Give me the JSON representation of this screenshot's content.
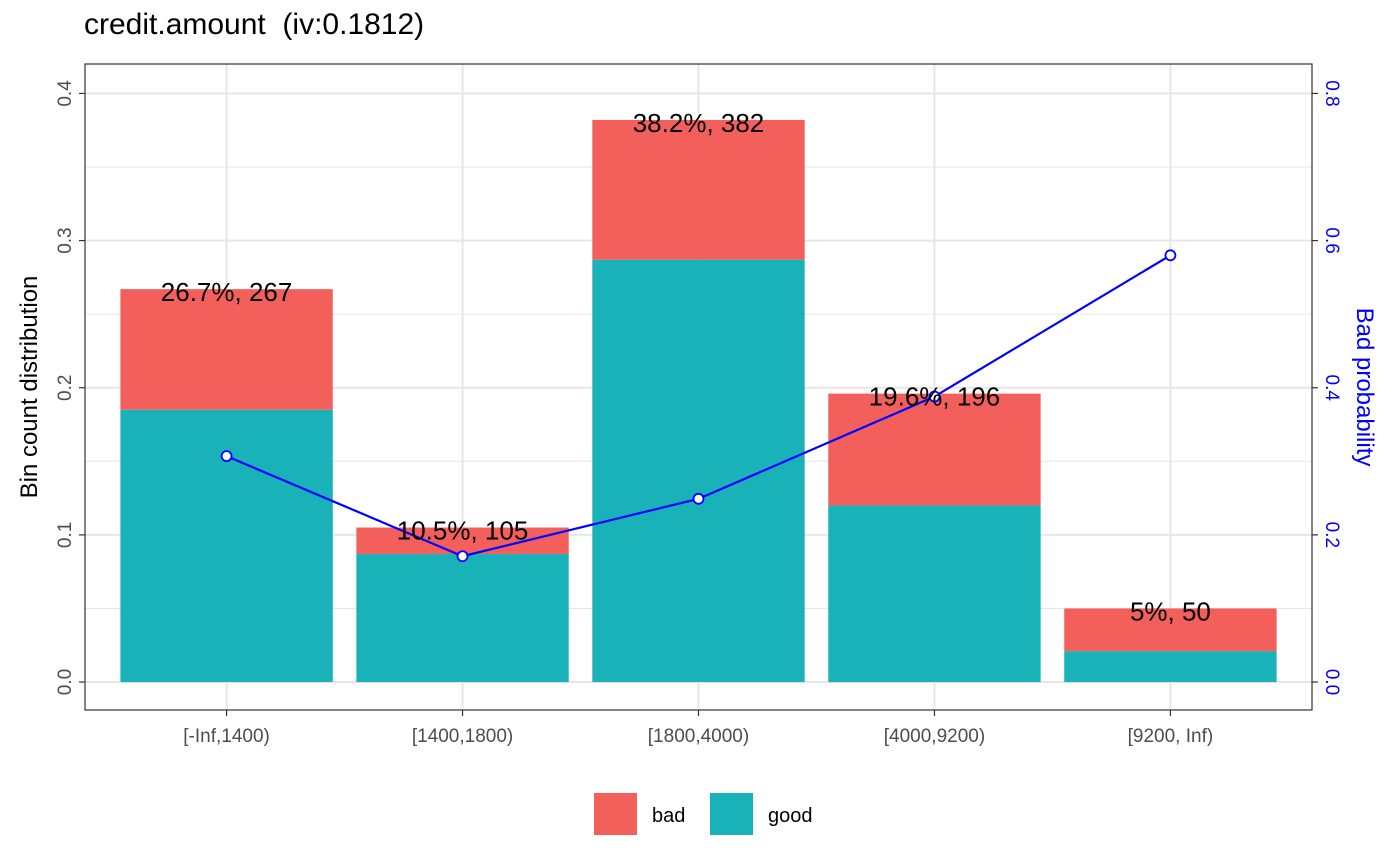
{
  "chart_data": {
    "type": "bar",
    "title": "credit.amount  (iv:0.1812)",
    "xlabel": "",
    "ylabel": "Bin count distribution",
    "y2label": "Bad probability",
    "categories": [
      "[-Inf,1400)",
      "[1400,1800)",
      "[1800,4000)",
      "[4000,9200)",
      "[9200, Inf)"
    ],
    "series": [
      {
        "name": "good",
        "type": "bar",
        "stacked": true,
        "values": [
          0.185,
          0.087,
          0.287,
          0.12,
          0.021
        ]
      },
      {
        "name": "bad",
        "type": "bar",
        "stacked": true,
        "values": [
          0.082,
          0.018,
          0.095,
          0.076,
          0.029
        ]
      }
    ],
    "bad_probability": [
      0.307,
      0.171,
      0.249,
      0.388,
      0.58
    ],
    "data_labels": [
      "26.7%, 267",
      "10.5%, 105",
      "38.2%, 382",
      "19.6%, 196",
      "5%, 50"
    ],
    "ylim": [
      -0.019,
      0.42
    ],
    "y2lim": [
      -0.038,
      0.84
    ],
    "yticks": [
      "0.0",
      "0.1",
      "0.2",
      "0.3",
      "0.4"
    ],
    "y2ticks": [
      "0.0",
      "0.2",
      "0.4",
      "0.6",
      "0.8"
    ],
    "legend": {
      "position": "bottom",
      "entries": [
        "bad",
        "good"
      ]
    },
    "colors": {
      "good": "#19B2B8",
      "bad": "#F3605C",
      "line": "#0000FF",
      "grid": "#E6E6E6"
    },
    "grid": true
  }
}
